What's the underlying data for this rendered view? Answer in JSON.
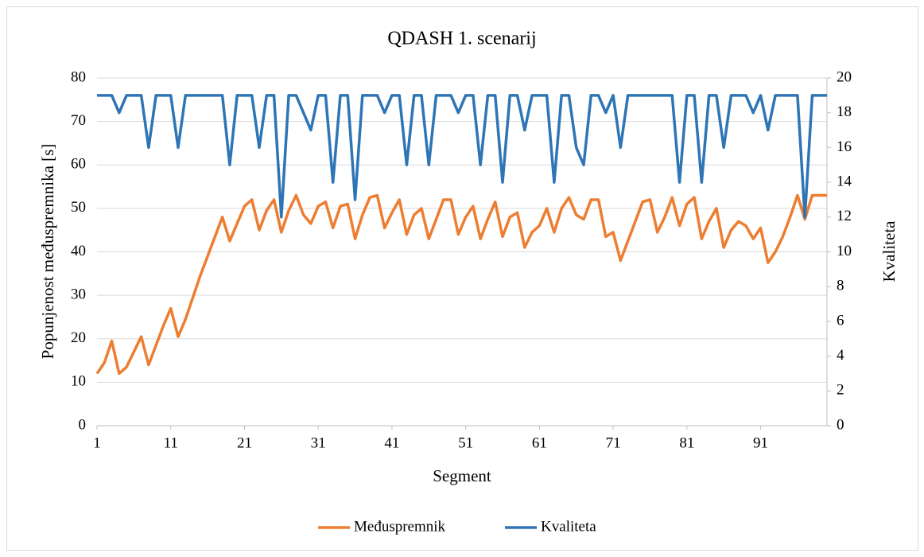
{
  "chart_data": {
    "type": "line",
    "title": "QDASH 1. scenarij",
    "xlabel": "Segment",
    "ylabel": "Popunjenost međuspremnika [s]",
    "y2label": "Kvaliteta",
    "x": [
      1,
      2,
      3,
      4,
      5,
      6,
      7,
      8,
      9,
      10,
      11,
      12,
      13,
      14,
      15,
      16,
      17,
      18,
      19,
      20,
      21,
      22,
      23,
      24,
      25,
      26,
      27,
      28,
      29,
      30,
      31,
      32,
      33,
      34,
      35,
      36,
      37,
      38,
      39,
      40,
      41,
      42,
      43,
      44,
      45,
      46,
      47,
      48,
      49,
      50,
      51,
      52,
      53,
      54,
      55,
      56,
      57,
      58,
      59,
      60,
      61,
      62,
      63,
      64,
      65,
      66,
      67,
      68,
      69,
      70,
      71,
      72,
      73,
      74,
      75,
      76,
      77,
      78,
      79,
      80,
      81,
      82,
      83,
      84,
      85,
      86,
      87,
      88,
      89,
      90,
      91,
      92,
      93,
      94,
      95,
      96,
      97,
      98,
      99,
      100
    ],
    "xlim": [
      1,
      100
    ],
    "xticks": [
      1,
      11,
      21,
      31,
      41,
      51,
      61,
      71,
      81,
      91
    ],
    "ylim": [
      0,
      80
    ],
    "yticks": [
      0,
      10,
      20,
      30,
      40,
      50,
      60,
      70,
      80
    ],
    "y2lim": [
      0,
      20
    ],
    "y2ticks": [
      0,
      2,
      4,
      6,
      8,
      10,
      12,
      14,
      16,
      18,
      20
    ],
    "grid": true,
    "legend": "bottom",
    "series": [
      {
        "name": "Međuspremnik",
        "color": "#ed7d31",
        "values": [
          12,
          14.5,
          19.5,
          12,
          13.5,
          17,
          20.5,
          14,
          18.5,
          23,
          27,
          20.5,
          24.5,
          29.5,
          34.5,
          39,
          43.5,
          48,
          42.5,
          46.5,
          50.5,
          52,
          45,
          49.5,
          52,
          44.5,
          49.5,
          53,
          48.5,
          46.5,
          50.5,
          51.5,
          45.5,
          50.5,
          51,
          43,
          48.5,
          52.5,
          53,
          45.5,
          49,
          52,
          44,
          48.5,
          50,
          43,
          47.5,
          52,
          52,
          44,
          48,
          50.5,
          43,
          47.5,
          51.5,
          43.5,
          48,
          49,
          41,
          44.5,
          46,
          50,
          44.5,
          50,
          52.5,
          48.5,
          47.5,
          52,
          52,
          43.5,
          44.5,
          38,
          42.5,
          47,
          51.5,
          52,
          44.5,
          48,
          52.5,
          46,
          51,
          52.5,
          43,
          47,
          50,
          41,
          45,
          47,
          46,
          43,
          45.5,
          37.5,
          40,
          43.5,
          48,
          53,
          47.5,
          53,
          53,
          53
        ]
      },
      {
        "name": "Kvaliteta",
        "color": "#2e75b6",
        "axis": "y2",
        "values": [
          19,
          19,
          19,
          18,
          19,
          19,
          19,
          16,
          19,
          19,
          19,
          16,
          19,
          19,
          19,
          19,
          19,
          19,
          15,
          19,
          19,
          19,
          16,
          19,
          19,
          12,
          19,
          19,
          18,
          17,
          19,
          19,
          14,
          19,
          19,
          13,
          19,
          19,
          19,
          18,
          19,
          19,
          15,
          19,
          19,
          15,
          19,
          19,
          19,
          18,
          19,
          19,
          15,
          19,
          19,
          14,
          19,
          19,
          17,
          19,
          19,
          19,
          14,
          19,
          19,
          16,
          15,
          19,
          19,
          18,
          19,
          16,
          19,
          19,
          19,
          19,
          19,
          19,
          19,
          14,
          19,
          19,
          14,
          19,
          19,
          16,
          19,
          19,
          19,
          18,
          19,
          17,
          19,
          19,
          19,
          19,
          12,
          19,
          19,
          19
        ]
      }
    ]
  }
}
